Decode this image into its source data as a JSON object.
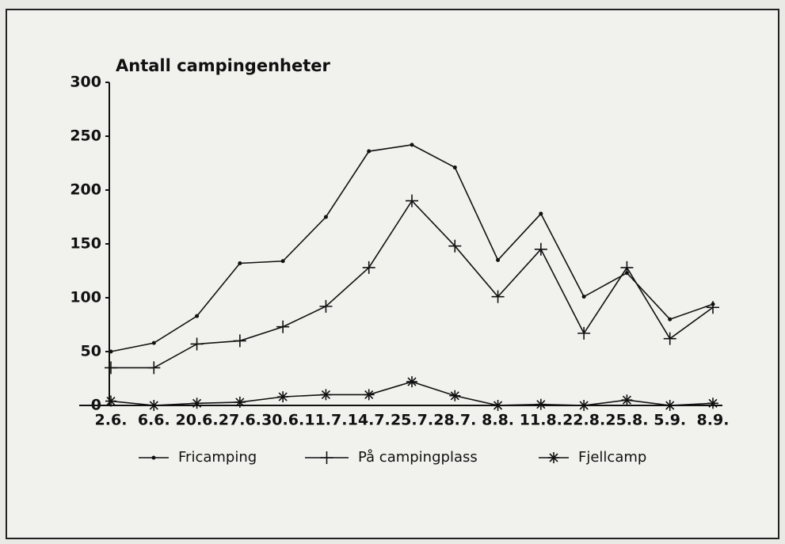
{
  "chart_data": {
    "type": "line",
    "title": "Antall campingenheter",
    "categories": [
      "2.6.",
      "6.6.",
      "20.6.",
      "27.6.",
      "30.6.",
      "11.7.",
      "14.7.",
      "25.7.",
      "28.7.",
      "8.8.",
      "11.8.",
      "22.8.",
      "25.8.",
      "5.9.",
      "8.9."
    ],
    "series": [
      {
        "name": "Fricamping",
        "color": "#111111",
        "marker": "dot",
        "values": [
          50,
          58,
          83,
          132,
          134,
          175,
          236,
          242,
          221,
          135,
          178,
          101,
          123,
          80,
          94
        ]
      },
      {
        "name": "På campingplass",
        "color": "#111111",
        "marker": "plus",
        "values": [
          35,
          35,
          57,
          60,
          73,
          92,
          128,
          190,
          148,
          101,
          145,
          67,
          128,
          62,
          91
        ]
      },
      {
        "name": "Fjellcamp",
        "color": "#111111",
        "marker": "star",
        "values": [
          4,
          0,
          2,
          3,
          8,
          10,
          10,
          22,
          9,
          0,
          1,
          0,
          5,
          0,
          2
        ]
      }
    ],
    "ylim": [
      0,
      300
    ],
    "yticks": [
      0,
      50,
      100,
      150,
      200,
      250,
      300
    ],
    "grid": false,
    "legend": "bottom"
  }
}
